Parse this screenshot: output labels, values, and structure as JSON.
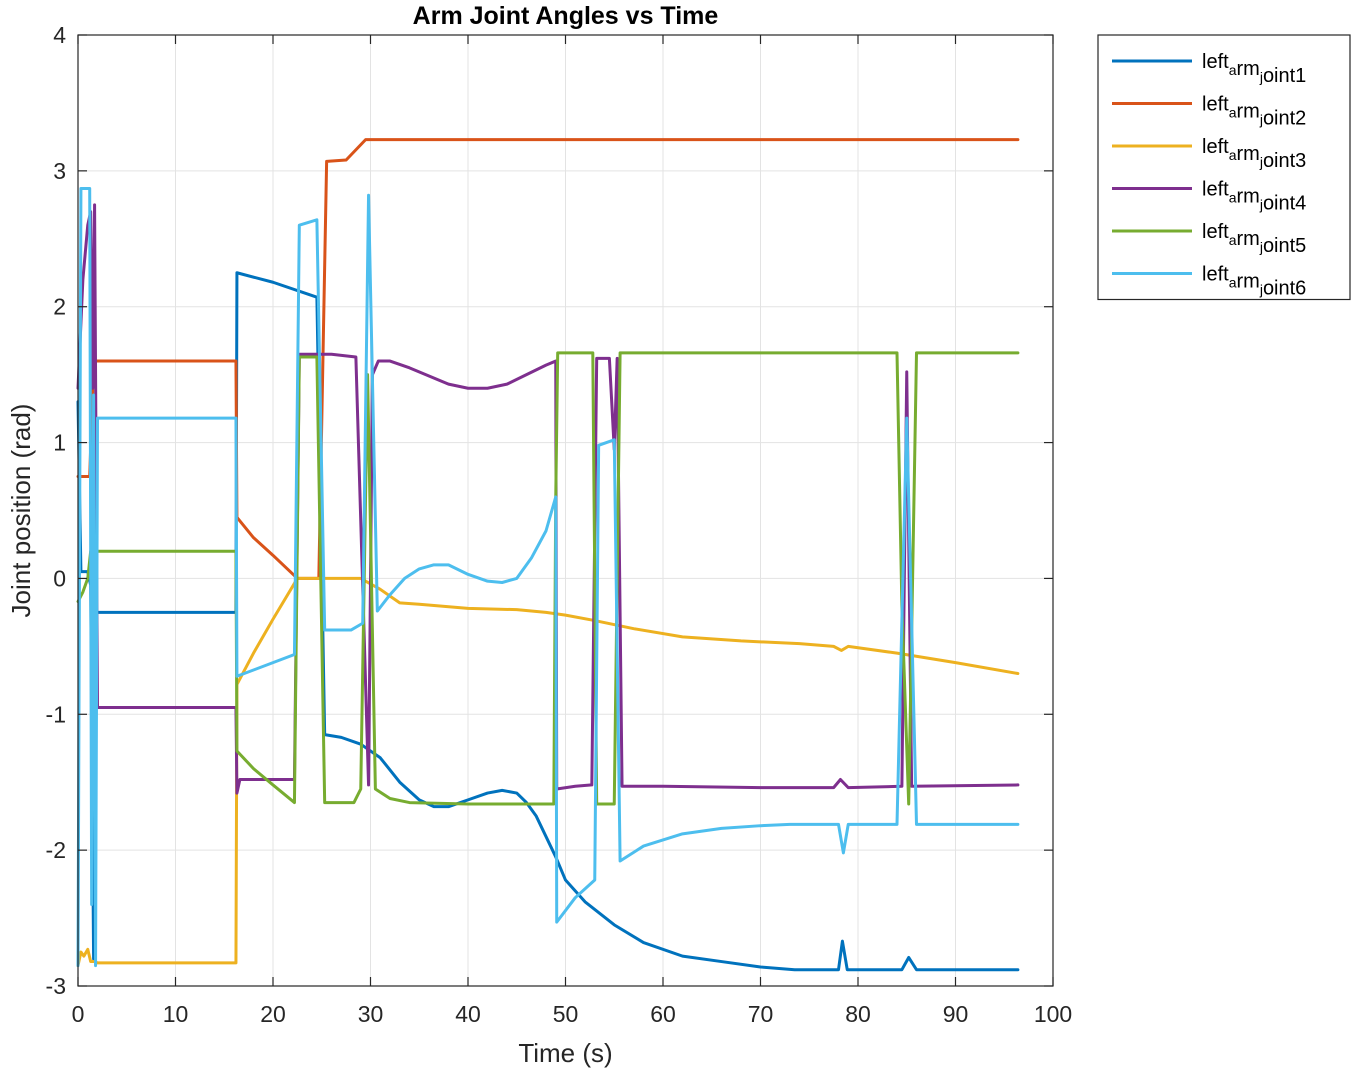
{
  "chart_data": {
    "type": "line",
    "title": "Arm Joint Angles vs Time",
    "xlabel": "Time (s)",
    "ylabel": "Joint position (rad)",
    "xlim": [
      0,
      100
    ],
    "ylim": [
      -3,
      4
    ],
    "xticks": [
      0,
      10,
      20,
      30,
      40,
      50,
      60,
      70,
      80,
      90,
      100
    ],
    "yticks": [
      -3,
      -2,
      -1,
      0,
      1,
      2,
      3,
      4
    ],
    "grid": true,
    "legend_position": "outside-top-right",
    "series": [
      {
        "name": "left_arm_joint1",
        "legend_label": "left<sub>a</sub>rm<sub>j</sub>oint1",
        "color": "#0072BD",
        "points": [
          [
            0,
            1.3
          ],
          [
            0.3,
            0.05
          ],
          [
            0.6,
            0.05
          ],
          [
            1,
            0.05
          ],
          [
            1.3,
            -0.05
          ],
          [
            1.6,
            -2.8
          ],
          [
            1.9,
            -0.25
          ],
          [
            2.2,
            -0.25
          ],
          [
            16.2,
            -0.25
          ],
          [
            16.3,
            2.25
          ],
          [
            20,
            2.18
          ],
          [
            24.5,
            2.07
          ],
          [
            25.3,
            -1.15
          ],
          [
            27,
            -1.17
          ],
          [
            29,
            -1.22
          ],
          [
            31,
            -1.32
          ],
          [
            33,
            -1.5
          ],
          [
            35,
            -1.63
          ],
          [
            36.5,
            -1.68
          ],
          [
            38,
            -1.68
          ],
          [
            40,
            -1.63
          ],
          [
            42,
            -1.58
          ],
          [
            43.5,
            -1.56
          ],
          [
            45,
            -1.58
          ],
          [
            46,
            -1.65
          ],
          [
            47,
            -1.75
          ],
          [
            48,
            -1.9
          ],
          [
            49,
            -2.05
          ],
          [
            50,
            -2.22
          ],
          [
            52,
            -2.38
          ],
          [
            55,
            -2.55
          ],
          [
            58,
            -2.68
          ],
          [
            62,
            -2.78
          ],
          [
            66,
            -2.82
          ],
          [
            70,
            -2.86
          ],
          [
            73.5,
            -2.88
          ],
          [
            78,
            -2.88
          ],
          [
            78.4,
            -2.67
          ],
          [
            78.9,
            -2.88
          ],
          [
            84.5,
            -2.88
          ],
          [
            85.2,
            -2.79
          ],
          [
            86,
            -2.88
          ],
          [
            96.4,
            -2.88
          ]
        ]
      },
      {
        "name": "left_arm_joint2",
        "legend_label": "left<sub>a</sub>rm<sub>j</sub>oint2",
        "color": "#D95319",
        "points": [
          [
            0,
            0.75
          ],
          [
            0.8,
            0.75
          ],
          [
            1.2,
            0.75
          ],
          [
            1.6,
            1.6
          ],
          [
            2.2,
            1.6
          ],
          [
            16.2,
            1.6
          ],
          [
            16.3,
            0.45
          ],
          [
            18,
            0.3
          ],
          [
            20,
            0.17
          ],
          [
            22.5,
            0.0
          ],
          [
            24.7,
            0.0
          ],
          [
            25.5,
            3.07
          ],
          [
            27.5,
            3.08
          ],
          [
            29.5,
            3.23
          ],
          [
            96.4,
            3.23
          ]
        ]
      },
      {
        "name": "left_arm_joint3",
        "legend_label": "left<sub>a</sub>rm<sub>j</sub>oint3",
        "color": "#EDB120",
        "points": [
          [
            0,
            -2.85
          ],
          [
            0.3,
            -2.75
          ],
          [
            0.6,
            -2.78
          ],
          [
            1,
            -2.73
          ],
          [
            1.3,
            -2.82
          ],
          [
            1.7,
            -2.82
          ],
          [
            2,
            -2.83
          ],
          [
            16.2,
            -2.83
          ],
          [
            16.3,
            -0.78
          ],
          [
            18,
            -0.55
          ],
          [
            20,
            -0.3
          ],
          [
            22.5,
            0.0
          ],
          [
            25,
            0.0
          ],
          [
            29,
            0.0
          ],
          [
            31,
            -0.08
          ],
          [
            33,
            -0.18
          ],
          [
            35,
            -0.19
          ],
          [
            40,
            -0.22
          ],
          [
            45,
            -0.23
          ],
          [
            48,
            -0.25
          ],
          [
            50,
            -0.27
          ],
          [
            53,
            -0.31
          ],
          [
            57,
            -0.37
          ],
          [
            62,
            -0.43
          ],
          [
            68,
            -0.46
          ],
          [
            74,
            -0.48
          ],
          [
            77.5,
            -0.5
          ],
          [
            78.3,
            -0.53
          ],
          [
            79,
            -0.5
          ],
          [
            84,
            -0.55
          ],
          [
            90,
            -0.62
          ],
          [
            96.4,
            -0.7
          ]
        ]
      },
      {
        "name": "left_arm_joint4",
        "legend_label": "left<sub>a</sub>rm<sub>j</sub>oint4",
        "color": "#7E2F8E",
        "points": [
          [
            0,
            1.4
          ],
          [
            0.5,
            2.2
          ],
          [
            1,
            2.6
          ],
          [
            1.3,
            2.7
          ],
          [
            1.5,
            1.4
          ],
          [
            1.7,
            2.75
          ],
          [
            2,
            -0.95
          ],
          [
            16.2,
            -0.95
          ],
          [
            16.3,
            -1.58
          ],
          [
            16.6,
            -1.48
          ],
          [
            19,
            -1.48
          ],
          [
            22.2,
            -1.48
          ],
          [
            22.7,
            1.65
          ],
          [
            26,
            1.65
          ],
          [
            28.5,
            1.63
          ],
          [
            29.3,
            -0.3
          ],
          [
            29.8,
            -1.52
          ],
          [
            30.2,
            1.5
          ],
          [
            30.8,
            1.6
          ],
          [
            32,
            1.6
          ],
          [
            34,
            1.55
          ],
          [
            36,
            1.49
          ],
          [
            38,
            1.43
          ],
          [
            40,
            1.4
          ],
          [
            42,
            1.4
          ],
          [
            44,
            1.43
          ],
          [
            46,
            1.5
          ],
          [
            48,
            1.57
          ],
          [
            49,
            1.6
          ],
          [
            49.1,
            -1.55
          ],
          [
            51,
            -1.53
          ],
          [
            52.7,
            -1.52
          ],
          [
            53.2,
            1.62
          ],
          [
            54.5,
            1.62
          ],
          [
            55,
            0.95
          ],
          [
            55.3,
            1.62
          ],
          [
            55.8,
            -1.53
          ],
          [
            60,
            -1.53
          ],
          [
            70,
            -1.54
          ],
          [
            77.5,
            -1.54
          ],
          [
            78.2,
            -1.48
          ],
          [
            79,
            -1.54
          ],
          [
            84.5,
            -1.53
          ],
          [
            85,
            1.52
          ],
          [
            85.5,
            -1.53
          ],
          [
            96.4,
            -1.52
          ]
        ]
      },
      {
        "name": "left_arm_joint5",
        "legend_label": "left<sub>a</sub>rm<sub>j</sub>oint5",
        "color": "#77AC30",
        "points": [
          [
            0,
            -0.17
          ],
          [
            0.5,
            -0.1
          ],
          [
            1,
            0.0
          ],
          [
            1.3,
            0.2
          ],
          [
            2,
            0.2
          ],
          [
            16.2,
            0.2
          ],
          [
            16.3,
            -1.27
          ],
          [
            18,
            -1.4
          ],
          [
            20,
            -1.52
          ],
          [
            22.2,
            -1.65
          ],
          [
            22.7,
            1.63
          ],
          [
            24.5,
            1.63
          ],
          [
            25.3,
            -1.65
          ],
          [
            27,
            -1.65
          ],
          [
            28.3,
            -1.65
          ],
          [
            29,
            -1.55
          ],
          [
            29.7,
            1.5
          ],
          [
            30.5,
            -1.55
          ],
          [
            32,
            -1.62
          ],
          [
            34,
            -1.65
          ],
          [
            40,
            -1.66
          ],
          [
            45,
            -1.66
          ],
          [
            48.8,
            -1.66
          ],
          [
            49,
            0.6
          ],
          [
            49.2,
            1.66
          ],
          [
            52.8,
            1.66
          ],
          [
            53.2,
            -1.66
          ],
          [
            55,
            -1.66
          ],
          [
            55.6,
            1.66
          ],
          [
            70,
            1.66
          ],
          [
            84,
            1.66
          ],
          [
            84.5,
            -0.2
          ],
          [
            85.2,
            -1.66
          ],
          [
            86,
            1.66
          ],
          [
            96.4,
            1.66
          ]
        ]
      },
      {
        "name": "left_arm_joint6",
        "legend_label": "left<sub>a</sub>rm<sub>j</sub>oint6",
        "color": "#4DBEEE",
        "points": [
          [
            0,
            -2.85
          ],
          [
            0.3,
            2.87
          ],
          [
            1.2,
            2.87
          ],
          [
            1.4,
            -2.4
          ],
          [
            1.6,
            1.35
          ],
          [
            1.8,
            -2.85
          ],
          [
            2,
            1.18
          ],
          [
            16.2,
            1.18
          ],
          [
            16.3,
            -0.72
          ],
          [
            22.2,
            -0.56
          ],
          [
            22.7,
            2.6
          ],
          [
            24.5,
            2.64
          ],
          [
            25.3,
            -0.38
          ],
          [
            28,
            -0.38
          ],
          [
            29.2,
            -0.33
          ],
          [
            29.8,
            2.82
          ],
          [
            30.7,
            -0.24
          ],
          [
            32,
            -0.12
          ],
          [
            33.5,
            0.0
          ],
          [
            35,
            0.07
          ],
          [
            36.5,
            0.1
          ],
          [
            38,
            0.1
          ],
          [
            40,
            0.03
          ],
          [
            42,
            -0.02
          ],
          [
            43.5,
            -0.03
          ],
          [
            45,
            0.0
          ],
          [
            46.5,
            0.15
          ],
          [
            48,
            0.35
          ],
          [
            49,
            0.6
          ],
          [
            49.1,
            -2.53
          ],
          [
            51,
            -2.35
          ],
          [
            53,
            -2.22
          ],
          [
            53.4,
            0.98
          ],
          [
            55,
            1.02
          ],
          [
            55.6,
            -2.08
          ],
          [
            58,
            -1.97
          ],
          [
            62,
            -1.88
          ],
          [
            66,
            -1.84
          ],
          [
            70,
            -1.82
          ],
          [
            73,
            -1.81
          ],
          [
            78,
            -1.81
          ],
          [
            78.5,
            -2.02
          ],
          [
            79,
            -1.81
          ],
          [
            84,
            -1.81
          ],
          [
            85,
            1.18
          ],
          [
            86,
            -1.81
          ],
          [
            96.4,
            -1.81
          ]
        ]
      }
    ]
  }
}
